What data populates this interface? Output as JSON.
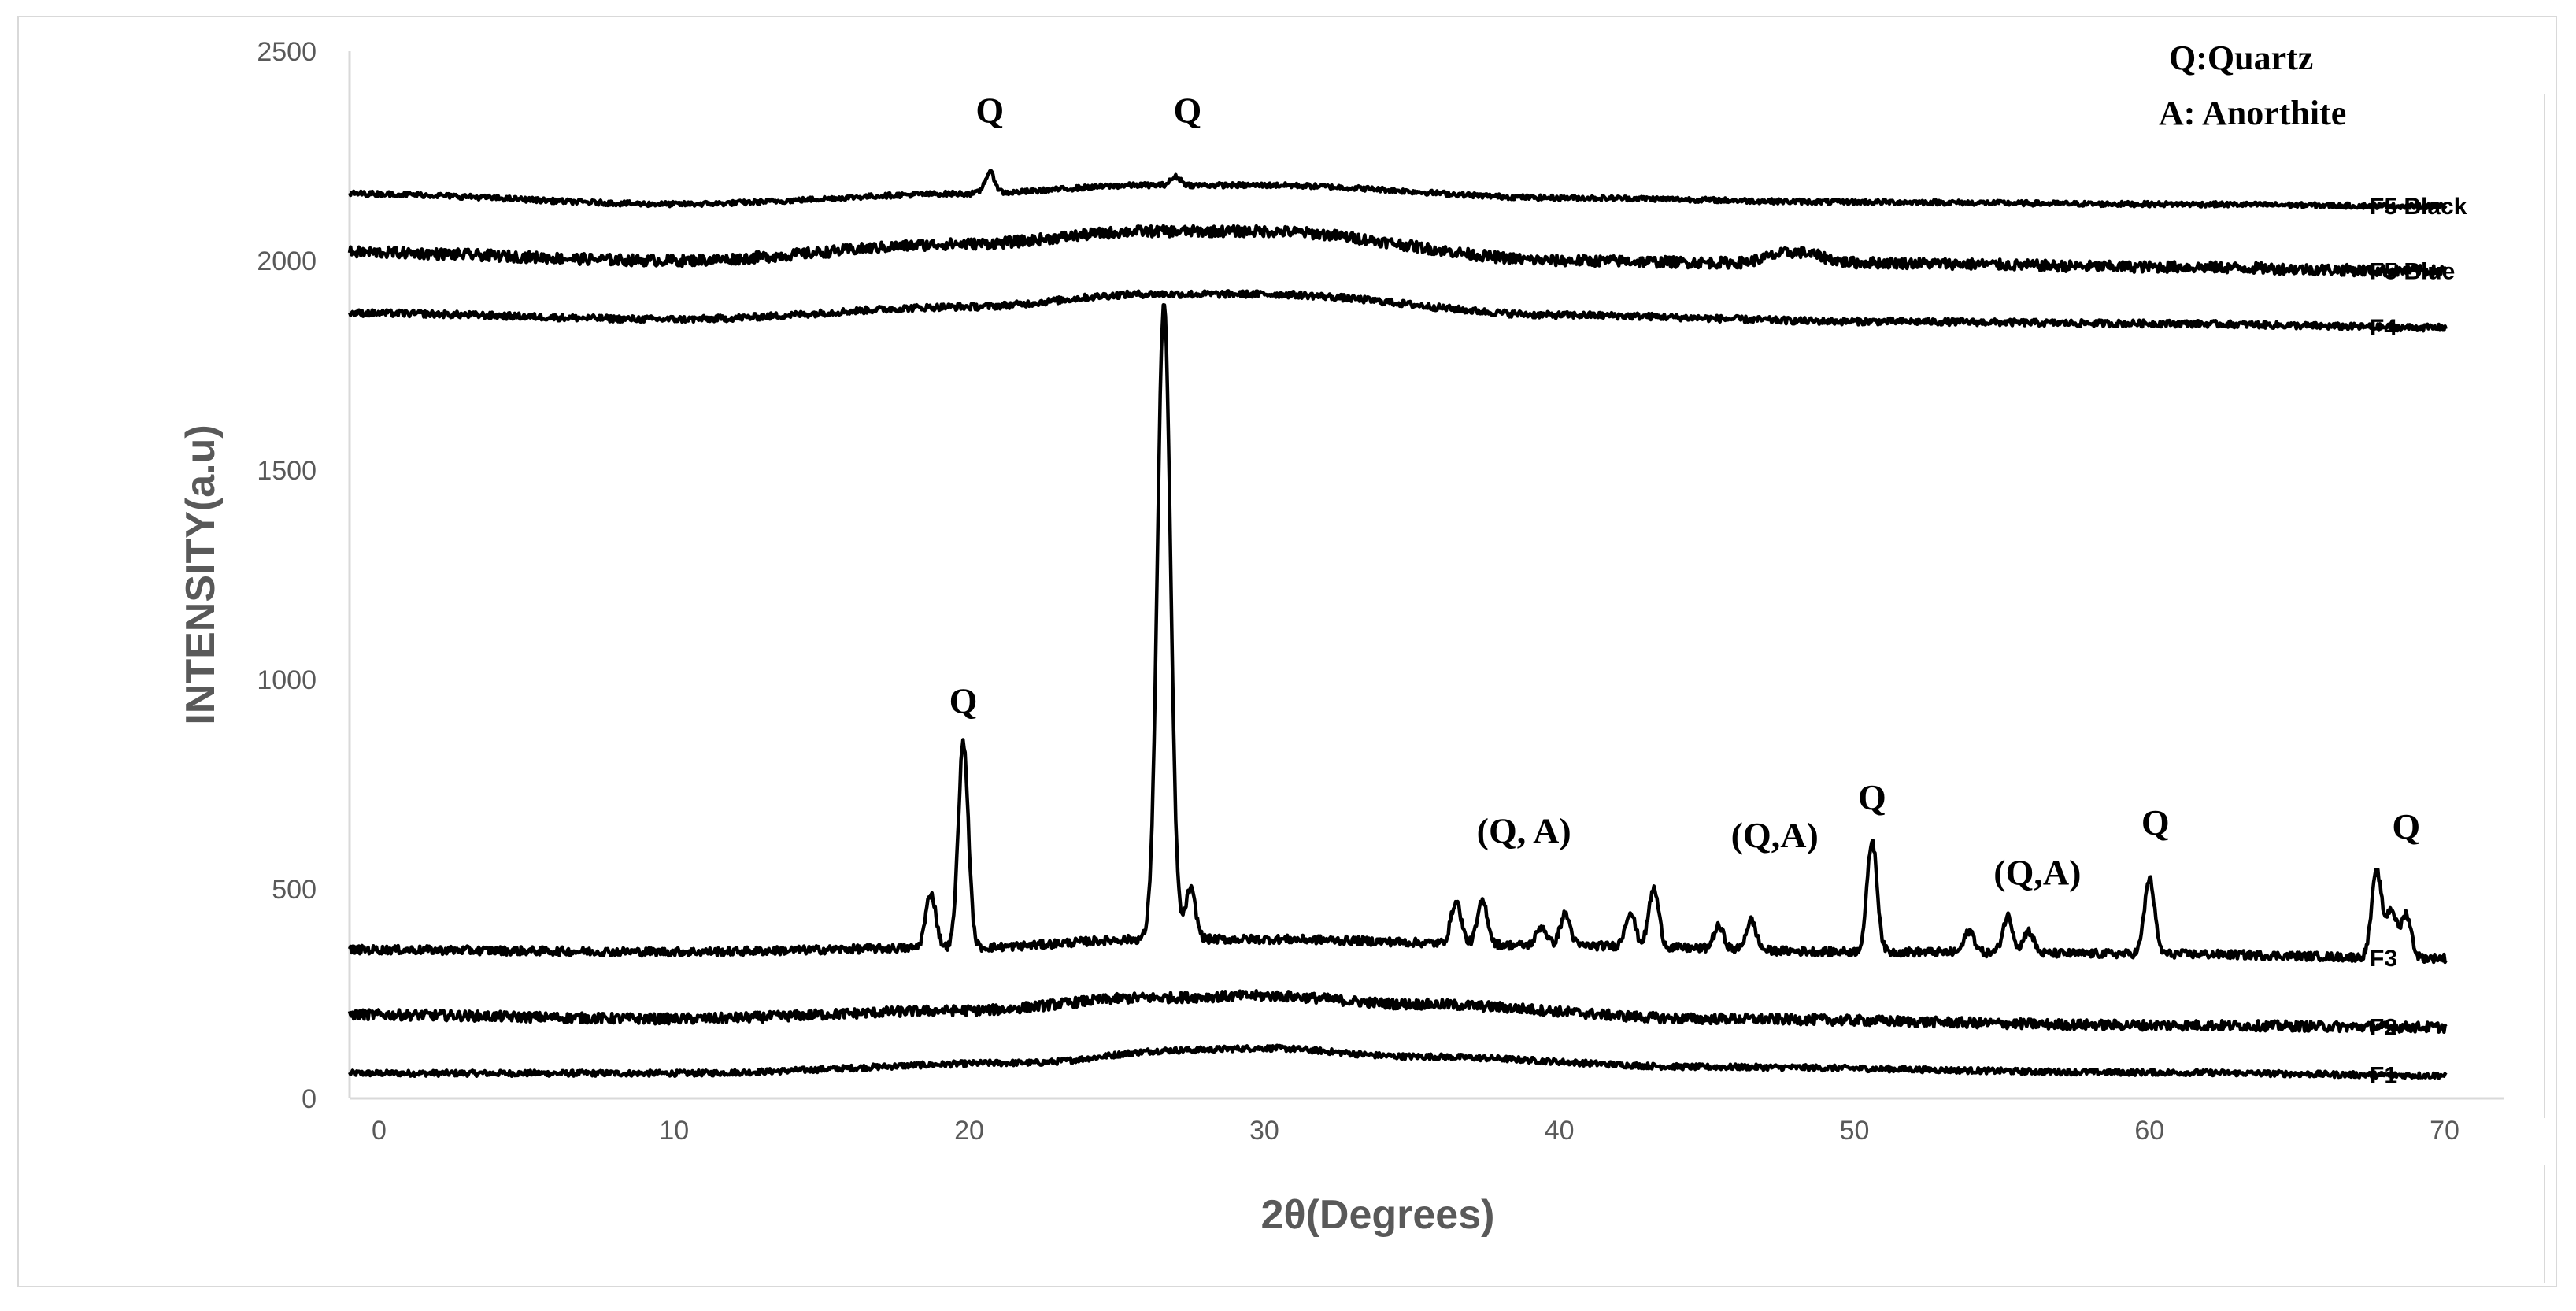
{
  "chart_data": {
    "type": "line",
    "xlabel": "2θ(Degrees)",
    "ylabel": "INTENSITY(a.u)",
    "xlim": [
      -1,
      72
    ],
    "ylim": [
      0,
      2500
    ],
    "x_ticks": [
      0,
      10,
      20,
      30,
      40,
      50,
      60,
      70
    ],
    "y_ticks": [
      0,
      500,
      1000,
      1500,
      2000,
      2500
    ],
    "grid": false,
    "line_color": "#000000",
    "legend_notes": [
      "Q:Quartz",
      "A: Anorthite"
    ],
    "series": [
      {
        "name": "F1",
        "baseline": [
          [
            -1,
            60
          ],
          [
            10,
            60
          ],
          [
            22,
            85
          ],
          [
            27,
            115
          ],
          [
            30,
            120
          ],
          [
            35,
            100
          ],
          [
            45,
            75
          ],
          [
            60,
            62
          ],
          [
            70,
            55
          ]
        ],
        "noise": 7,
        "peaks": []
      },
      {
        "name": "F2",
        "baseline": [
          [
            -1,
            200
          ],
          [
            10,
            190
          ],
          [
            20,
            210
          ],
          [
            26,
            240
          ],
          [
            30,
            245
          ],
          [
            35,
            225
          ],
          [
            45,
            190
          ],
          [
            60,
            175
          ],
          [
            70,
            170
          ]
        ],
        "noise": 12,
        "peaks": []
      },
      {
        "name": "F3",
        "baseline": [
          [
            -1,
            355
          ],
          [
            10,
            350
          ],
          [
            20,
            360
          ],
          [
            26,
            380
          ],
          [
            30,
            380
          ],
          [
            40,
            365
          ],
          [
            50,
            350
          ],
          [
            60,
            345
          ],
          [
            70,
            335
          ]
        ],
        "noise": 10,
        "peaks": [
          [
            18.7,
            490
          ],
          [
            19.8,
            850
          ],
          [
            26.6,
            1900
          ],
          [
            27.5,
            500
          ],
          [
            36.5,
            470
          ],
          [
            37.4,
            470
          ],
          [
            39.4,
            410
          ],
          [
            40.2,
            440
          ],
          [
            42.4,
            445
          ],
          [
            43.2,
            500
          ],
          [
            45.4,
            410
          ],
          [
            46.5,
            425
          ],
          [
            50.6,
            615
          ],
          [
            53.9,
            400
          ],
          [
            55.2,
            435
          ],
          [
            55.9,
            400
          ],
          [
            60.0,
            525
          ],
          [
            67.7,
            540
          ],
          [
            68.2,
            450
          ],
          [
            68.7,
            440
          ]
        ]
      },
      {
        "name": "F4",
        "baseline": [
          [
            -1,
            1875
          ],
          [
            10,
            1860
          ],
          [
            20,
            1890
          ],
          [
            26,
            1920
          ],
          [
            30,
            1920
          ],
          [
            40,
            1870
          ],
          [
            50,
            1855
          ],
          [
            60,
            1850
          ],
          [
            70,
            1840
          ]
        ],
        "noise": 8,
        "peaks": []
      },
      {
        "name": "F5 Blue",
        "baseline": [
          [
            -1,
            2020
          ],
          [
            10,
            2000
          ],
          [
            20,
            2040
          ],
          [
            26,
            2070
          ],
          [
            30,
            2070
          ],
          [
            40,
            2000
          ],
          [
            46,
            1995
          ],
          [
            48,
            2020
          ],
          [
            50,
            1995
          ],
          [
            60,
            1985
          ],
          [
            70,
            1975
          ]
        ],
        "noise": 13,
        "peaks": []
      },
      {
        "name": "F5 Black",
        "baseline": [
          [
            -1,
            2160
          ],
          [
            10,
            2135
          ],
          [
            20,
            2160
          ],
          [
            26,
            2180
          ],
          [
            30,
            2180
          ],
          [
            40,
            2150
          ],
          [
            50,
            2140
          ],
          [
            60,
            2135
          ],
          [
            70,
            2130
          ]
        ],
        "noise": 6,
        "peaks": [
          [
            20.7,
            2210
          ],
          [
            27.0,
            2200
          ]
        ]
      }
    ],
    "annotations": [
      {
        "text": "Q",
        "x": 20.7,
        "y": 2330
      },
      {
        "text": "Q",
        "x": 27.4,
        "y": 2330
      },
      {
        "text": "Q",
        "x": 19.8,
        "y": 920
      },
      {
        "text": "(Q, A)",
        "x": 38.8,
        "y": 610
      },
      {
        "text": "(Q,A)",
        "x": 47.3,
        "y": 600
      },
      {
        "text": "Q",
        "x": 50.6,
        "y": 690
      },
      {
        "text": "(Q,A)",
        "x": 56.2,
        "y": 510
      },
      {
        "text": "Q",
        "x": 60.2,
        "y": 630
      },
      {
        "text": "Q",
        "x": 68.7,
        "y": 620
      }
    ]
  }
}
